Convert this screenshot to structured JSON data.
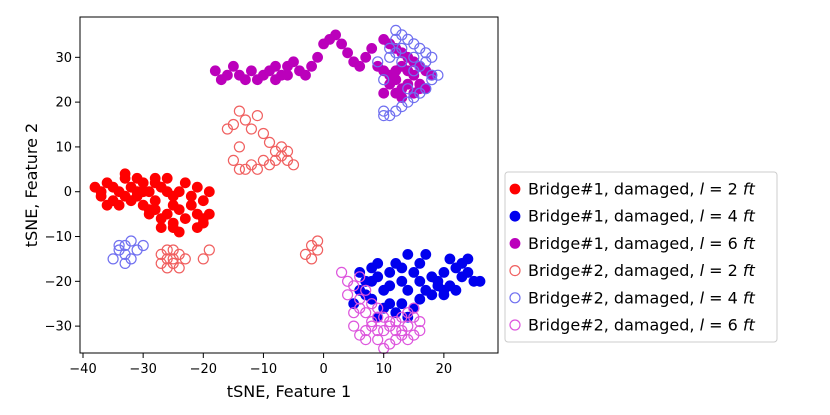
{
  "chart_data": {
    "type": "scatter",
    "xlabel": "tSNE, Feature 1",
    "ylabel": "tSNE, Feature 2",
    "xlim": [
      -40.5,
      29
    ],
    "ylim": [
      -36,
      39
    ],
    "xticks": [
      -40,
      -30,
      -20,
      -10,
      0,
      10,
      20
    ],
    "yticks": [
      -30,
      -20,
      -10,
      0,
      10,
      20,
      30
    ],
    "grid": false,
    "legend_position": "outside-right",
    "series": [
      {
        "name": "Bridge#1, damaged, l = 2 ft",
        "legend": {
          "prefix": "Bridge#1, damaged, ",
          "var": "l",
          "eq": " = 2 ",
          "unit": "ft"
        },
        "color": "#ff0000",
        "filled": true,
        "points": [
          [
            -38,
            1
          ],
          [
            -37,
            -1
          ],
          [
            -36,
            2
          ],
          [
            -35,
            -2
          ],
          [
            -34,
            0
          ],
          [
            -33,
            3
          ],
          [
            -32,
            1
          ],
          [
            -31,
            -1
          ],
          [
            -30,
            2
          ],
          [
            -29,
            0
          ],
          [
            -28,
            -2
          ],
          [
            -27,
            1
          ],
          [
            -26,
            3
          ],
          [
            -25,
            -1
          ],
          [
            -24,
            0
          ],
          [
            -23,
            2
          ],
          [
            -36,
            -3
          ],
          [
            -34,
            -3
          ],
          [
            -32,
            -2
          ],
          [
            -30,
            -3
          ],
          [
            -28,
            -4
          ],
          [
            -26,
            -5
          ],
          [
            -24,
            -4
          ],
          [
            -22,
            -3
          ],
          [
            -20,
            -2
          ],
          [
            -19,
            0
          ],
          [
            -21,
            1
          ],
          [
            -33,
            4
          ],
          [
            -31,
            3
          ],
          [
            -29,
            -5
          ],
          [
            -27,
            -6
          ],
          [
            -25,
            -7
          ],
          [
            -23,
            -6
          ],
          [
            -21,
            -5
          ],
          [
            -29,
            -4
          ],
          [
            -27,
            -8
          ],
          [
            -25,
            -8
          ],
          [
            -24,
            -9
          ],
          [
            -21,
            -8
          ],
          [
            -20,
            -7
          ],
          [
            -35,
            1
          ],
          [
            -33,
            -1
          ],
          [
            -31,
            0
          ],
          [
            -28,
            3
          ],
          [
            -26,
            0
          ],
          [
            -22,
            -1
          ],
          [
            -37,
            0
          ],
          [
            -30,
            0
          ],
          [
            -25,
            -3
          ],
          [
            -19,
            -5
          ],
          [
            -20,
            -6
          ],
          [
            -28,
            2
          ]
        ]
      },
      {
        "name": "Bridge#1, damaged, l = 4 ft",
        "legend": {
          "prefix": "Bridge#1, damaged, ",
          "var": "l",
          "eq": " = 4 ",
          "unit": "ft"
        },
        "color": "#0000ee",
        "filled": true,
        "points": [
          [
            5,
            -25
          ],
          [
            6,
            -22
          ],
          [
            7,
            -20
          ],
          [
            8,
            -17
          ],
          [
            9,
            -19
          ],
          [
            8,
            -24
          ],
          [
            9,
            -28
          ],
          [
            10,
            -22
          ],
          [
            11,
            -18
          ],
          [
            12,
            -16
          ],
          [
            13,
            -20
          ],
          [
            14,
            -14
          ],
          [
            15,
            -18
          ],
          [
            16,
            -16
          ],
          [
            17,
            -14
          ],
          [
            18,
            -19
          ],
          [
            19,
            -20
          ],
          [
            20,
            -18
          ],
          [
            21,
            -21
          ],
          [
            22,
            -17
          ],
          [
            23,
            -19
          ],
          [
            24,
            -18
          ],
          [
            25,
            -20
          ],
          [
            26,
            -20
          ],
          [
            22,
            -22
          ],
          [
            23,
            -16
          ],
          [
            21,
            -15
          ],
          [
            14,
            -22
          ],
          [
            13,
            -25
          ],
          [
            12,
            -27
          ],
          [
            11,
            -25
          ],
          [
            15,
            -26
          ],
          [
            16,
            -24
          ],
          [
            17,
            -22
          ],
          [
            18,
            -23
          ],
          [
            19,
            -21
          ],
          [
            20,
            -22
          ],
          [
            10,
            -26
          ],
          [
            7,
            -23
          ],
          [
            9,
            -16
          ],
          [
            6,
            -18
          ],
          [
            13,
            -17
          ],
          [
            11,
            -21
          ],
          [
            16,
            -20
          ],
          [
            24,
            -15
          ],
          [
            20,
            -23
          ],
          [
            14,
            -28
          ],
          [
            8,
            -20
          ]
        ]
      },
      {
        "name": "Bridge#1, damaged, l = 6 ft",
        "legend": {
          "prefix": "Bridge#1, damaged, ",
          "var": "l",
          "eq": " = 6 ",
          "unit": "ft"
        },
        "color": "#bb00bb",
        "filled": true,
        "points": [
          [
            -18,
            27
          ],
          [
            -17,
            25
          ],
          [
            -16,
            26
          ],
          [
            -15,
            28
          ],
          [
            -14,
            26
          ],
          [
            -13,
            25
          ],
          [
            -12,
            27
          ],
          [
            -11,
            25
          ],
          [
            -10,
            26
          ],
          [
            -9,
            27
          ],
          [
            -8,
            25
          ],
          [
            -7,
            26
          ],
          [
            -6,
            28
          ],
          [
            -5,
            29
          ],
          [
            -4,
            27
          ],
          [
            -3,
            26
          ],
          [
            -2,
            28
          ],
          [
            -1,
            30
          ],
          [
            0,
            33
          ],
          [
            1,
            34
          ],
          [
            2,
            35
          ],
          [
            3,
            33
          ],
          [
            4,
            31
          ],
          [
            5,
            29
          ],
          [
            6,
            28
          ],
          [
            7,
            30
          ],
          [
            8,
            32
          ],
          [
            10,
            34
          ],
          [
            11,
            33
          ],
          [
            12,
            32
          ],
          [
            13,
            31
          ],
          [
            14,
            30
          ],
          [
            15,
            29
          ],
          [
            16,
            28
          ],
          [
            17,
            27
          ],
          [
            18,
            26
          ],
          [
            17,
            23
          ],
          [
            16,
            24
          ],
          [
            15,
            22
          ],
          [
            14,
            24
          ],
          [
            13,
            23
          ],
          [
            12,
            25
          ],
          [
            11,
            26
          ],
          [
            12,
            27
          ],
          [
            13,
            28
          ],
          [
            14,
            27
          ],
          [
            15,
            26
          ],
          [
            16,
            23
          ],
          [
            13,
            21
          ],
          [
            12,
            22
          ],
          [
            10,
            22
          ],
          [
            11,
            24
          ],
          [
            9,
            28
          ],
          [
            10,
            27
          ],
          [
            -6,
            26
          ],
          [
            -8,
            28
          ]
        ]
      },
      {
        "name": "Bridge#2, damaged, l = 2 ft",
        "legend": {
          "prefix": "Bridge#2, damaged, ",
          "var": "l",
          "eq": " = 2 ",
          "unit": "ft"
        },
        "color": "#f06060",
        "filled": false,
        "points": [
          [
            -16,
            14
          ],
          [
            -15,
            15
          ],
          [
            -14,
            18
          ],
          [
            -13,
            16
          ],
          [
            -12,
            14
          ],
          [
            -11,
            17
          ],
          [
            -10,
            13
          ],
          [
            -9,
            11
          ],
          [
            -8,
            9
          ],
          [
            -7,
            8
          ],
          [
            -6,
            7
          ],
          [
            -5,
            6
          ],
          [
            -6,
            9
          ],
          [
            -8,
            7
          ],
          [
            -10,
            7
          ],
          [
            -11,
            5
          ],
          [
            -12,
            6
          ],
          [
            -13,
            5
          ],
          [
            -14,
            5
          ],
          [
            -15,
            7
          ],
          [
            -9,
            6
          ],
          [
            -7,
            10
          ],
          [
            -27,
            -14
          ],
          [
            -26,
            -15
          ],
          [
            -25,
            -16
          ],
          [
            -24,
            -14
          ],
          [
            -26,
            -13
          ],
          [
            -23,
            -15
          ],
          [
            -27,
            -16
          ],
          [
            -25,
            -13
          ],
          [
            -24,
            -17
          ],
          [
            -20,
            -15
          ],
          [
            -19,
            -13
          ],
          [
            -2,
            -12
          ],
          [
            -1,
            -13
          ],
          [
            -3,
            -14
          ],
          [
            -2,
            -15
          ],
          [
            -1,
            -11
          ],
          [
            -26,
            -17
          ],
          [
            -25,
            -15
          ],
          [
            -14,
            10
          ]
        ]
      },
      {
        "name": "Bridge#2, damaged, l = 4 ft",
        "legend": {
          "prefix": "Bridge#2, damaged, ",
          "var": "l",
          "eq": " = 4 ",
          "unit": "ft"
        },
        "color": "#7070f0",
        "filled": false,
        "points": [
          [
            -34,
            -13
          ],
          [
            -33,
            -12
          ],
          [
            -32,
            -11
          ],
          [
            -33,
            -14
          ],
          [
            -35,
            -15
          ],
          [
            -31,
            -13
          ],
          [
            -32,
            -15
          ],
          [
            -34,
            -12
          ],
          [
            -30,
            -12
          ],
          [
            -33,
            -16
          ],
          [
            10,
            18
          ],
          [
            11,
            17
          ],
          [
            12,
            18
          ],
          [
            13,
            19
          ],
          [
            14,
            20
          ],
          [
            15,
            21
          ],
          [
            16,
            22
          ],
          [
            17,
            23
          ],
          [
            18,
            25
          ],
          [
            19,
            26
          ],
          [
            12,
            36
          ],
          [
            13,
            35
          ],
          [
            14,
            34
          ],
          [
            15,
            33
          ],
          [
            16,
            32
          ],
          [
            17,
            31
          ],
          [
            18,
            30
          ],
          [
            17,
            29
          ],
          [
            16,
            28
          ],
          [
            15,
            27
          ],
          [
            13,
            29
          ],
          [
            12,
            31
          ],
          [
            11,
            30
          ],
          [
            10,
            25
          ],
          [
            9,
            29
          ],
          [
            14,
            23
          ],
          [
            18,
            26
          ],
          [
            11,
            32
          ],
          [
            13,
            32
          ],
          [
            15,
            30
          ],
          [
            10,
            17
          ],
          [
            12,
            34
          ]
        ]
      },
      {
        "name": "Bridge#2, damaged, l = 6 ft",
        "legend": {
          "prefix": "Bridge#2, damaged, ",
          "var": "l",
          "eq": " = 6 ",
          "unit": "ft"
        },
        "color": "#dd55dd",
        "filled": false,
        "points": [
          [
            3,
            -18
          ],
          [
            4,
            -20
          ],
          [
            5,
            -21
          ],
          [
            6,
            -19
          ],
          [
            7,
            -22
          ],
          [
            8,
            -25
          ],
          [
            9,
            -28
          ],
          [
            10,
            -31
          ],
          [
            11,
            -30
          ],
          [
            12,
            -29
          ],
          [
            13,
            -32
          ],
          [
            14,
            -30
          ],
          [
            15,
            -28
          ],
          [
            16,
            -31
          ],
          [
            8,
            -30
          ],
          [
            7,
            -33
          ],
          [
            6,
            -32
          ],
          [
            9,
            -33
          ],
          [
            10,
            -35
          ],
          [
            11,
            -34
          ],
          [
            12,
            -33
          ],
          [
            13,
            -31
          ],
          [
            14,
            -27
          ],
          [
            15,
            -26
          ],
          [
            5,
            -27
          ],
          [
            6,
            -24
          ],
          [
            7,
            -27
          ],
          [
            8,
            -29
          ],
          [
            9,
            -26
          ],
          [
            10,
            -28
          ],
          [
            11,
            -29
          ],
          [
            12,
            -31
          ],
          [
            13,
            -28
          ],
          [
            14,
            -33
          ],
          [
            15,
            -32
          ],
          [
            4,
            -23
          ],
          [
            5,
            -30
          ],
          [
            6,
            -26
          ],
          [
            7,
            -31
          ],
          [
            9,
            -31
          ],
          [
            16,
            -29
          ]
        ]
      }
    ]
  }
}
